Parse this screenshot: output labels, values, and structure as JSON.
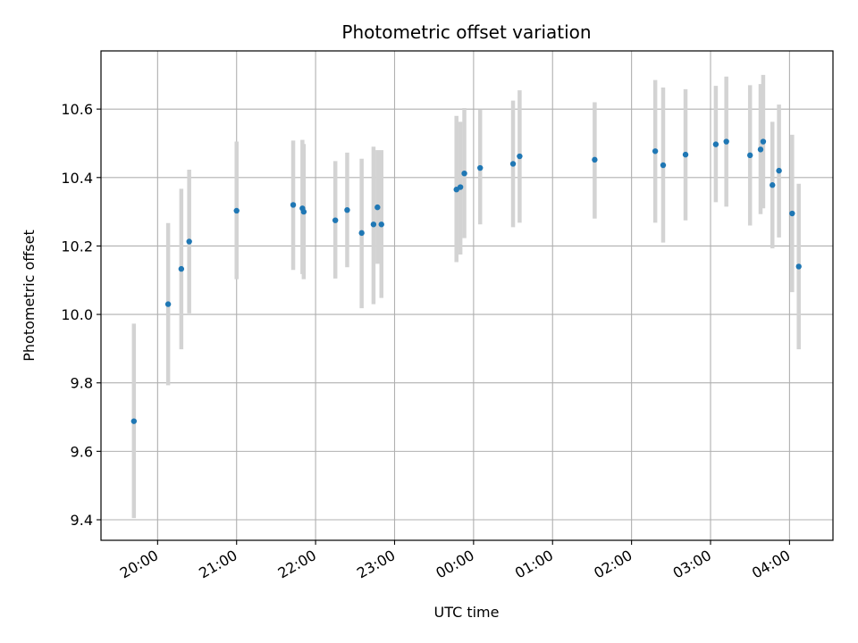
{
  "chart_data": {
    "type": "scatter",
    "title": "Photometric offset variation",
    "xlabel": "UTC time",
    "ylabel": "Photometric offset",
    "x_unit": "UTC hh:mm (times after midnight belong to the next day)",
    "xlim": [
      "19:17",
      "04:33"
    ],
    "ylim": [
      9.34,
      10.77
    ],
    "x_ticks": [
      "20:00",
      "21:00",
      "22:00",
      "23:00",
      "00:00",
      "01:00",
      "02:00",
      "03:00",
      "04:00"
    ],
    "y_ticks": [
      9.4,
      9.6,
      9.8,
      10.0,
      10.2,
      10.4,
      10.6
    ],
    "grid": true,
    "legend": "none",
    "marker_color": "#1f77b4",
    "errorbar_color": "#d3d3d3",
    "series": [
      {
        "points": [
          {
            "x": "19:42",
            "y": 9.688,
            "ylo": 9.405,
            "yhi": 9.973
          },
          {
            "x": "20:08",
            "y": 10.03,
            "ylo": 9.793,
            "yhi": 10.267
          },
          {
            "x": "20:18",
            "y": 10.133,
            "ylo": 9.898,
            "yhi": 10.367
          },
          {
            "x": "20:24",
            "y": 10.213,
            "ylo": 10.003,
            "yhi": 10.423
          },
          {
            "x": "21:00",
            "y": 10.303,
            "ylo": 10.103,
            "yhi": 10.505
          },
          {
            "x": "21:43",
            "y": 10.32,
            "ylo": 10.13,
            "yhi": 10.508
          },
          {
            "x": "21:50",
            "y": 10.31,
            "ylo": 10.118,
            "yhi": 10.51
          },
          {
            "x": "21:51",
            "y": 10.3,
            "ylo": 10.103,
            "yhi": 10.498
          },
          {
            "x": "22:15",
            "y": 10.275,
            "ylo": 10.105,
            "yhi": 10.448
          },
          {
            "x": "22:24",
            "y": 10.305,
            "ylo": 10.138,
            "yhi": 10.473
          },
          {
            "x": "22:35",
            "y": 10.238,
            "ylo": 10.018,
            "yhi": 10.455
          },
          {
            "x": "22:44",
            "y": 10.263,
            "ylo": 10.03,
            "yhi": 10.49
          },
          {
            "x": "22:47",
            "y": 10.313,
            "ylo": 10.148,
            "yhi": 10.48
          },
          {
            "x": "22:50",
            "y": 10.263,
            "ylo": 10.048,
            "yhi": 10.48
          },
          {
            "x": "23:47",
            "y": 10.365,
            "ylo": 10.153,
            "yhi": 10.58
          },
          {
            "x": "23:50",
            "y": 10.372,
            "ylo": 10.175,
            "yhi": 10.563
          },
          {
            "x": "23:53",
            "y": 10.412,
            "ylo": 10.223,
            "yhi": 10.603
          },
          {
            "x": "00:05",
            "y": 10.428,
            "ylo": 10.263,
            "yhi": 10.598
          },
          {
            "x": "00:30",
            "y": 10.44,
            "ylo": 10.255,
            "yhi": 10.625
          },
          {
            "x": "00:35",
            "y": 10.462,
            "ylo": 10.268,
            "yhi": 10.655
          },
          {
            "x": "01:32",
            "y": 10.452,
            "ylo": 10.28,
            "yhi": 10.62
          },
          {
            "x": "02:18",
            "y": 10.477,
            "ylo": 10.268,
            "yhi": 10.685
          },
          {
            "x": "02:24",
            "y": 10.436,
            "ylo": 10.21,
            "yhi": 10.663
          },
          {
            "x": "02:41",
            "y": 10.467,
            "ylo": 10.275,
            "yhi": 10.658
          },
          {
            "x": "03:04",
            "y": 10.497,
            "ylo": 10.328,
            "yhi": 10.668
          },
          {
            "x": "03:12",
            "y": 10.505,
            "ylo": 10.315,
            "yhi": 10.695
          },
          {
            "x": "03:30",
            "y": 10.465,
            "ylo": 10.26,
            "yhi": 10.67
          },
          {
            "x": "03:38",
            "y": 10.482,
            "ylo": 10.293,
            "yhi": 10.673
          },
          {
            "x": "03:40",
            "y": 10.505,
            "ylo": 10.31,
            "yhi": 10.7
          },
          {
            "x": "03:47",
            "y": 10.378,
            "ylo": 10.193,
            "yhi": 10.563
          },
          {
            "x": "03:52",
            "y": 10.42,
            "ylo": 10.225,
            "yhi": 10.613
          },
          {
            "x": "04:02",
            "y": 10.295,
            "ylo": 10.065,
            "yhi": 10.525
          },
          {
            "x": "04:07",
            "y": 10.14,
            "ylo": 9.898,
            "yhi": 10.382
          }
        ]
      }
    ]
  }
}
